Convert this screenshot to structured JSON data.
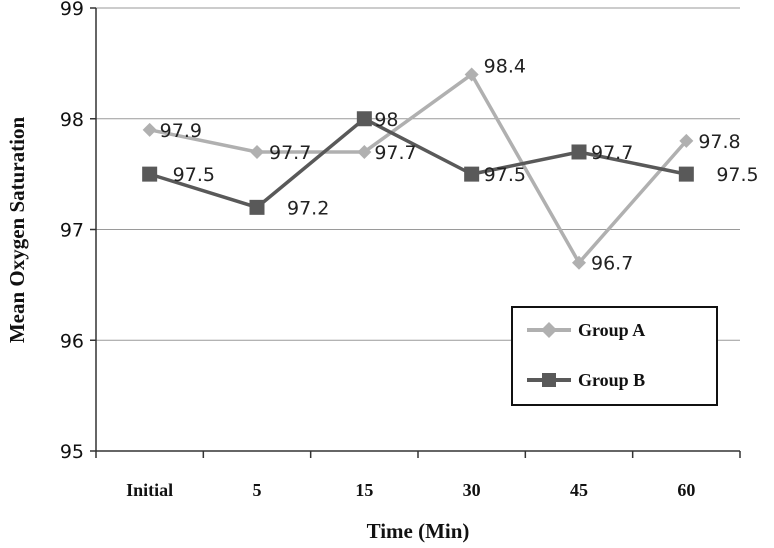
{
  "chart_data": {
    "type": "line",
    "title": "",
    "xlabel": "Time (Min)",
    "ylabel": "Mean Oxygen Saturation",
    "categories": [
      "Initial",
      "5",
      "15",
      "30",
      "45",
      "60"
    ],
    "ylim": [
      95,
      99
    ],
    "yticks": [
      "95",
      "96",
      "97",
      "98",
      "99"
    ],
    "grid": true,
    "legend_position": "bottom-right",
    "series": [
      {
        "name": "Group A",
        "marker": "diamond",
        "color": "#b0b0b0",
        "values": [
          97.9,
          97.7,
          97.7,
          98.4,
          96.7,
          97.8
        ],
        "labels": [
          "97.9",
          "97.7",
          "97.7",
          "98.4",
          "96.7",
          "97.8"
        ]
      },
      {
        "name": "Group B",
        "marker": "square",
        "color": "#595959",
        "values": [
          97.5,
          97.2,
          98.0,
          97.5,
          97.7,
          97.5
        ],
        "labels": [
          "97.5",
          "97.2",
          "98",
          "97.5",
          "97.7",
          "97.5"
        ]
      }
    ]
  }
}
